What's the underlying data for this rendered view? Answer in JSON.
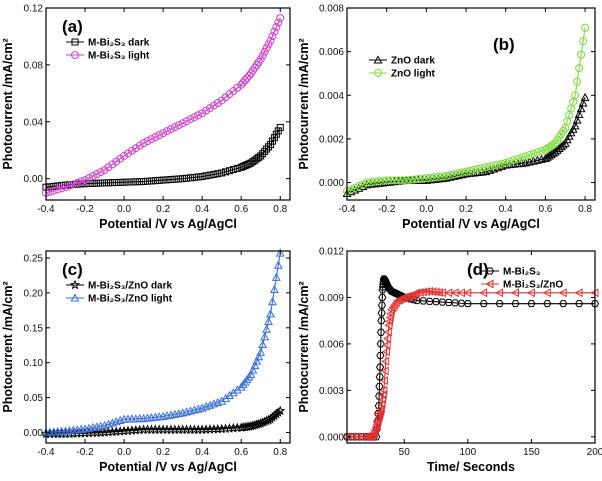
{
  "panels": [
    {
      "label": "(a)",
      "xlabel": "Potential /V vs Ag/AgCl",
      "ylabel": "Photocurrent /mA/cm²",
      "xlim": [
        -0.4,
        0.85
      ],
      "ylim": [
        -0.015,
        0.12
      ],
      "xticks": [
        -0.4,
        -0.2,
        0.0,
        0.2,
        0.4,
        0.6,
        0.8
      ],
      "xtick_labels": [
        "-0.4",
        "-0.2",
        "0.0",
        "0.2",
        "0.4",
        "0.6",
        "0.8"
      ],
      "yticks": [
        0.0,
        0.04,
        0.08,
        0.12
      ],
      "ytick_labels": [
        "0.00",
        "0.04",
        "0.08",
        "0.12"
      ],
      "legend": [
        "M-Bi₂S₃ dark",
        "M-Bi₂S₃ light"
      ],
      "series": [
        {
          "name": "M-Bi2S3 dark",
          "color": "#000000",
          "marker": "square",
          "x": [
            -0.4,
            -0.3,
            -0.2,
            -0.1,
            0.0,
            0.1,
            0.2,
            0.3,
            0.4,
            0.5,
            0.6,
            0.65,
            0.7,
            0.75,
            0.8
          ],
          "y": [
            -0.006,
            -0.0045,
            -0.0035,
            -0.003,
            -0.0025,
            -0.002,
            -0.001,
            0.0,
            0.0015,
            0.004,
            0.008,
            0.011,
            0.016,
            0.024,
            0.036
          ]
        },
        {
          "name": "M-Bi2S3 light",
          "color": "#cc44cc",
          "marker": "circle",
          "x": [
            -0.4,
            -0.3,
            -0.2,
            -0.1,
            0.0,
            0.1,
            0.2,
            0.3,
            0.4,
            0.5,
            0.6,
            0.65,
            0.7,
            0.75,
            0.8
          ],
          "y": [
            -0.01,
            -0.006,
            -0.001,
            0.006,
            0.016,
            0.025,
            0.032,
            0.039,
            0.046,
            0.055,
            0.066,
            0.074,
            0.084,
            0.097,
            0.113
          ]
        }
      ]
    },
    {
      "label": "(b)",
      "xlabel": "Potential /V vs Ag/AgCl",
      "ylabel": "Photocurrent /mA/cm²",
      "xlim": [
        -0.4,
        0.85
      ],
      "ylim": [
        -0.0008,
        0.008
      ],
      "xticks": [
        -0.4,
        -0.2,
        0.0,
        0.2,
        0.4,
        0.6,
        0.8
      ],
      "xtick_labels": [
        "-0.4",
        "-0.2",
        "0.0",
        "0.2",
        "0.4",
        "0.6",
        "0.8"
      ],
      "yticks": [
        0.0,
        0.002,
        0.004,
        0.006,
        0.008
      ],
      "ytick_labels": [
        "0.000",
        "0.002",
        "0.004",
        "0.006",
        "0.008"
      ],
      "legend": [
        "ZnO dark",
        "ZnO light"
      ],
      "series": [
        {
          "name": "ZnO dark",
          "color": "#000000",
          "marker": "triangle",
          "x": [
            -0.4,
            -0.3,
            -0.2,
            -0.1,
            0.0,
            0.1,
            0.2,
            0.3,
            0.4,
            0.5,
            0.6,
            0.65,
            0.7,
            0.75,
            0.8
          ],
          "y": [
            -0.0005,
            -0.0001,
            0.0,
            0.0001,
            0.0001,
            0.0002,
            0.0004,
            0.0005,
            0.0008,
            0.0009,
            0.0011,
            0.0014,
            0.0018,
            0.0026,
            0.0039
          ]
        },
        {
          "name": "ZnO light",
          "color": "#7ddc3c",
          "marker": "circle",
          "x": [
            -0.4,
            -0.3,
            -0.2,
            -0.1,
            0.0,
            0.1,
            0.2,
            0.3,
            0.4,
            0.5,
            0.6,
            0.65,
            0.7,
            0.75,
            0.8
          ],
          "y": [
            -0.0004,
            0.0,
            0.0001,
            0.0001,
            0.0002,
            0.0003,
            0.0005,
            0.0007,
            0.0009,
            0.0012,
            0.0015,
            0.0018,
            0.0025,
            0.004,
            0.0071
          ]
        }
      ]
    },
    {
      "label": "(c)",
      "xlabel": "Potential /V vs Ag/AgCl",
      "ylabel": "Photocurrent /mA/cm²",
      "xlim": [
        -0.4,
        0.85
      ],
      "ylim": [
        -0.015,
        0.26
      ],
      "xticks": [
        -0.4,
        -0.2,
        0.0,
        0.2,
        0.4,
        0.6,
        0.8
      ],
      "xtick_labels": [
        "-0.4",
        "-0.2",
        "0.0",
        "0.2",
        "0.4",
        "0.6",
        "0.8"
      ],
      "yticks": [
        0.0,
        0.05,
        0.1,
        0.15,
        0.2,
        0.25
      ],
      "ytick_labels": [
        "0.00",
        "0.05",
        "0.10",
        "0.15",
        "0.20",
        "0.25"
      ],
      "legend": [
        "M-Bi₂S₃/ZnO dark",
        "M-Bi₂S₃/ZnO light"
      ],
      "series": [
        {
          "name": "M-Bi2S3/ZnO dark",
          "color": "#000000",
          "marker": "star",
          "x": [
            -0.4,
            -0.3,
            -0.2,
            -0.1,
            0.0,
            0.1,
            0.2,
            0.3,
            0.4,
            0.5,
            0.6,
            0.65,
            0.7,
            0.75,
            0.8
          ],
          "y": [
            -0.002,
            -0.002,
            -0.001,
            0.0,
            0.002,
            0.004,
            0.004,
            0.004,
            0.004,
            0.005,
            0.007,
            0.009,
            0.013,
            0.019,
            0.031
          ]
        },
        {
          "name": "M-Bi2S3/ZnO light",
          "color": "#3a6fd8",
          "marker": "triangle",
          "x": [
            -0.4,
            -0.3,
            -0.2,
            -0.1,
            0.0,
            0.1,
            0.2,
            0.3,
            0.4,
            0.5,
            0.6,
            0.65,
            0.7,
            0.75,
            0.8
          ],
          "y": [
            0.0,
            0.002,
            0.005,
            0.01,
            0.019,
            0.02,
            0.023,
            0.028,
            0.035,
            0.045,
            0.065,
            0.083,
            0.115,
            0.17,
            0.257
          ]
        }
      ]
    },
    {
      "label": "(d)",
      "xlabel": "Time/ Seconds",
      "ylabel": "Photocurrent /mA/cm²",
      "xlim": [
        5,
        200
      ],
      "ylim": [
        -0.0004,
        0.012
      ],
      "xticks": [
        50,
        100,
        150,
        200
      ],
      "xtick_labels": [
        "50",
        "100",
        "150",
        "200"
      ],
      "yticks": [
        0.0,
        0.003,
        0.006,
        0.009,
        0.012
      ],
      "ytick_labels": [
        "0.000",
        "0.003",
        "0.006",
        "0.009",
        "0.012"
      ],
      "legend": [
        "M-Bi₂S₃",
        "M-Bi₂S₃/ZnO"
      ],
      "series": [
        {
          "name": "M-Bi2S3",
          "color": "#000000",
          "marker": "hexagon",
          "x": [
            5,
            20,
            28,
            30,
            31,
            32,
            33,
            34,
            35,
            36,
            38,
            40,
            45,
            50,
            60,
            80,
            100,
            150,
            200
          ],
          "y": [
            0.0,
            0.0,
            0.0,
            0.002,
            0.0045,
            0.0075,
            0.0095,
            0.0102,
            0.0101,
            0.0099,
            0.0096,
            0.0094,
            0.0092,
            0.009,
            0.0088,
            0.0087,
            0.0086,
            0.0086,
            0.0086
          ]
        },
        {
          "name": "M-Bi2S3/ZnO",
          "color": "#e03030",
          "marker": "triangle-left",
          "x": [
            5,
            20,
            25,
            28,
            30,
            32,
            34,
            36,
            38,
            40,
            45,
            50,
            55,
            60,
            70,
            80,
            100,
            150,
            200
          ],
          "y": [
            0.0,
            0.0,
            0.0,
            0.0006,
            0.0012,
            0.0018,
            0.003,
            0.0055,
            0.0072,
            0.0082,
            0.0088,
            0.009,
            0.0091,
            0.0093,
            0.0094,
            0.0093,
            0.0093,
            0.0093,
            0.0093
          ]
        }
      ]
    }
  ],
  "chart_data": [
    {
      "type": "line",
      "title": "(a)",
      "xlabel": "Potential /V vs Ag/AgCl",
      "ylabel": "Photocurrent /mA/cm²",
      "xlim": [
        -0.4,
        0.85
      ],
      "ylim": [
        -0.015,
        0.12
      ]
    },
    {
      "type": "line",
      "title": "(b)",
      "xlabel": "Potential /V vs Ag/AgCl",
      "ylabel": "Photocurrent /mA/cm²",
      "xlim": [
        -0.4,
        0.85
      ],
      "ylim": [
        -0.0008,
        0.008
      ]
    },
    {
      "type": "line",
      "title": "(c)",
      "xlabel": "Potential /V vs Ag/AgCl",
      "ylabel": "Photocurrent /mA/cm²",
      "xlim": [
        -0.4,
        0.85
      ],
      "ylim": [
        -0.015,
        0.26
      ]
    },
    {
      "type": "line",
      "title": "(d)",
      "xlabel": "Time/ Seconds",
      "ylabel": "Photocurrent /mA/cm²",
      "xlim": [
        5,
        200
      ],
      "ylim": [
        -0.0004,
        0.012
      ]
    }
  ]
}
